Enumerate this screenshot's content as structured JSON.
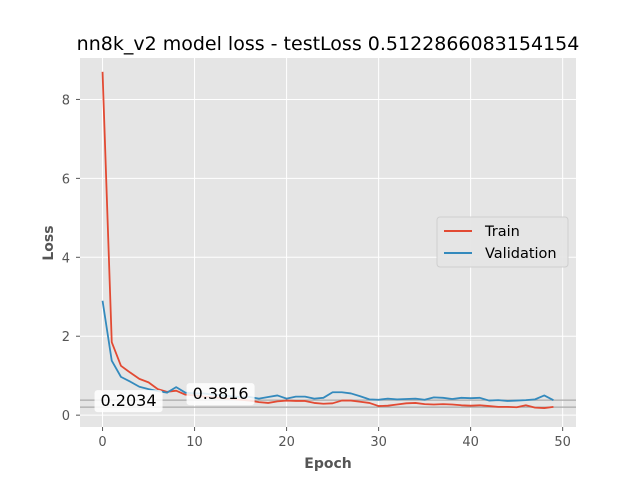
{
  "chart_data": {
    "type": "line",
    "title": "nn8k_v2 model loss - testLoss 0.5122866083154154",
    "xlabel": "Epoch",
    "ylabel": "Loss",
    "xlim": [
      -2.45,
      51.45
    ],
    "ylim": [
      -0.3,
      9.05
    ],
    "xticks": [
      0,
      10,
      20,
      30,
      40,
      50
    ],
    "yticks": [
      0,
      2,
      4,
      6,
      8
    ],
    "grid": true,
    "legend_position": "center-right",
    "x": [
      0,
      1,
      2,
      3,
      4,
      5,
      6,
      7,
      8,
      9,
      10,
      11,
      12,
      13,
      14,
      15,
      16,
      17,
      18,
      19,
      20,
      21,
      22,
      23,
      24,
      25,
      26,
      27,
      28,
      29,
      30,
      31,
      32,
      33,
      34,
      35,
      36,
      37,
      38,
      39,
      40,
      41,
      42,
      43,
      44,
      45,
      46,
      47,
      48,
      49
    ],
    "series": [
      {
        "name": "Train",
        "color": "#e24a33",
        "values": [
          8.7,
          1.85,
          1.25,
          1.08,
          0.92,
          0.83,
          0.66,
          0.59,
          0.62,
          0.52,
          0.5,
          0.47,
          0.45,
          0.43,
          0.41,
          0.39,
          0.37,
          0.33,
          0.31,
          0.35,
          0.37,
          0.36,
          0.36,
          0.31,
          0.29,
          0.3,
          0.37,
          0.37,
          0.34,
          0.31,
          0.23,
          0.24,
          0.27,
          0.3,
          0.31,
          0.28,
          0.27,
          0.28,
          0.27,
          0.25,
          0.24,
          0.25,
          0.23,
          0.21,
          0.21,
          0.2,
          0.25,
          0.19,
          0.18,
          0.21
        ]
      },
      {
        "name": "Validation",
        "color": "#348abd",
        "values": [
          2.9,
          1.38,
          0.97,
          0.85,
          0.72,
          0.66,
          0.61,
          0.57,
          0.71,
          0.57,
          0.55,
          0.55,
          0.52,
          0.5,
          0.48,
          0.46,
          0.46,
          0.42,
          0.46,
          0.5,
          0.42,
          0.47,
          0.47,
          0.42,
          0.44,
          0.58,
          0.58,
          0.55,
          0.48,
          0.4,
          0.39,
          0.42,
          0.4,
          0.41,
          0.42,
          0.39,
          0.45,
          0.44,
          0.41,
          0.44,
          0.43,
          0.44,
          0.37,
          0.38,
          0.36,
          0.37,
          0.38,
          0.4,
          0.5,
          0.38
        ]
      }
    ],
    "hlines": [
      0.2034,
      0.3816
    ],
    "annotations": [
      {
        "text": "0.2034",
        "x": 0,
        "y": 0.2034
      },
      {
        "text": "0.3816",
        "x": 10,
        "y": 0.3816
      }
    ]
  }
}
